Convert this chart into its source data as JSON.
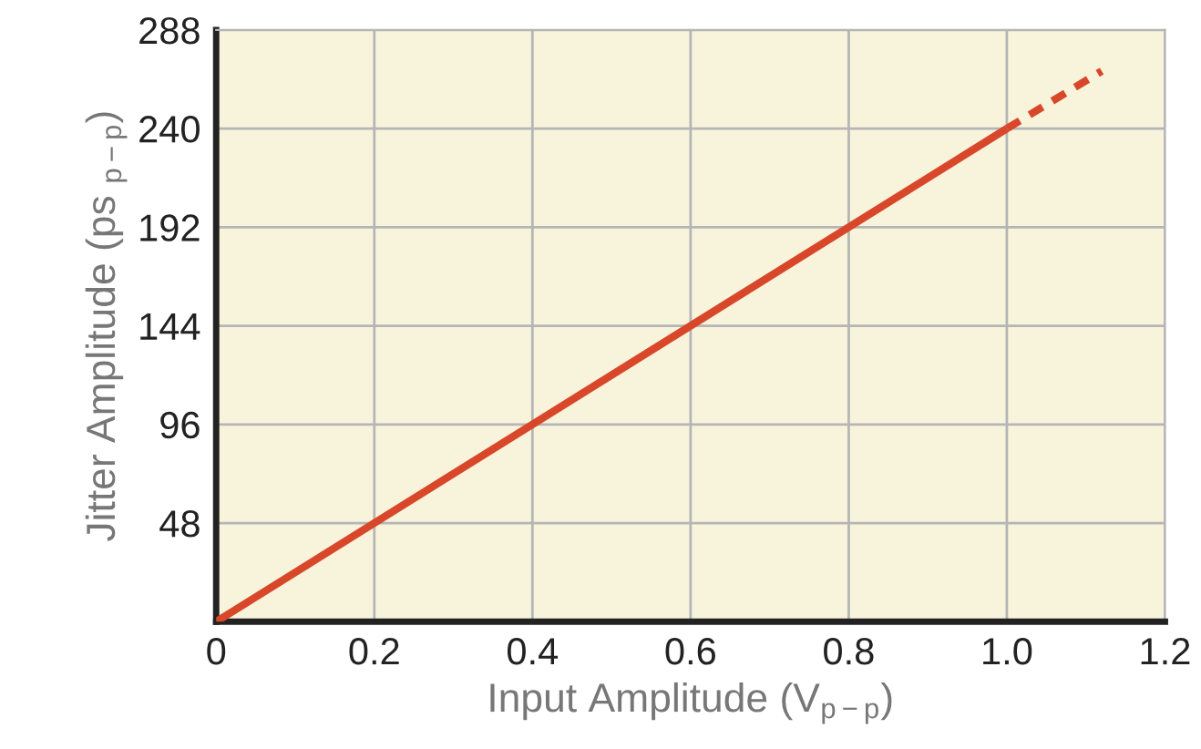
{
  "chart_data": {
    "type": "line",
    "xlabel": "Input Amplitude (V$_{p−p}$)",
    "ylabel": "Jitter Amplitude (ps $_{p−p}$)",
    "series": [
      {
        "x": [
          0,
          1.0
        ],
        "values": [
          0,
          240
        ],
        "color": "#d9472b",
        "line_style": "solid"
      },
      {
        "x": [
          1.0,
          1.12
        ],
        "values": [
          240,
          268
        ],
        "color": "#d9472b",
        "line_style": "dashed"
      }
    ],
    "xlim": [
      0,
      1.2
    ],
    "xticks": [
      {
        "value": 0,
        "label": "0"
      },
      0.2,
      0.4,
      0.6,
      0.8,
      {
        "value": 1.0,
        "label": "1.0"
      },
      1.2
    ],
    "ylim": [
      0,
      288
    ],
    "yticks": [
      {
        "value": 0,
        "label": null
      },
      48,
      96,
      144,
      192,
      240,
      288
    ],
    "grid": true,
    "marker": "none"
  }
}
